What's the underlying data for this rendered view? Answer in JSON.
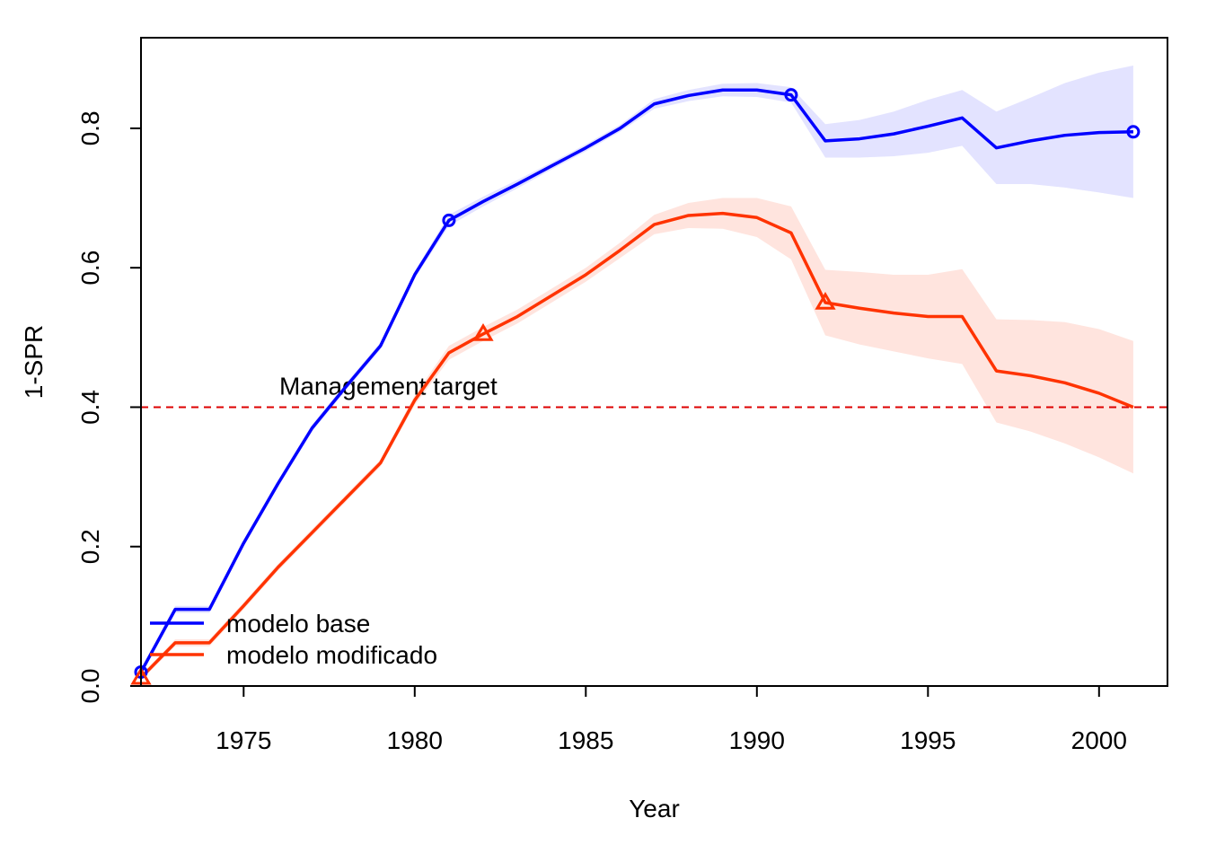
{
  "chart_data": {
    "type": "line",
    "title": "",
    "xlabel": "Year",
    "ylabel": "1-SPR",
    "xlim": [
      1972,
      2002
    ],
    "ylim": [
      0,
      0.93
    ],
    "x_ticks": [
      1975,
      1980,
      1985,
      1990,
      1995,
      2000
    ],
    "x_tick_labels": [
      "1975",
      "1980",
      "1985",
      "1990",
      "1995",
      "2000"
    ],
    "y_ticks": [
      0.0,
      0.2,
      0.4,
      0.6,
      0.8
    ],
    "y_tick_labels": [
      "0.0",
      "0.2",
      "0.4",
      "0.6",
      "0.8"
    ],
    "grid": false,
    "legend_position": "bottom-left",
    "reference_line": {
      "y": 0.4,
      "label": "Management target",
      "color": "#dd0000",
      "style": "dashed"
    },
    "years": [
      1972,
      1973,
      1974,
      1975,
      1976,
      1977,
      1978,
      1979,
      1980,
      1981,
      1982,
      1983,
      1984,
      1985,
      1986,
      1987,
      1988,
      1989,
      1990,
      1991,
      1992,
      1993,
      1994,
      1995,
      1996,
      1997,
      1998,
      1999,
      2000,
      2001
    ],
    "series": [
      {
        "name": "modelo base",
        "color": "#0000ff",
        "band_color": "#e3e3ff",
        "marker": "circle",
        "marker_years": [
          1972,
          1981,
          1991,
          2001
        ],
        "values": [
          0.02,
          0.11,
          0.11,
          0.205,
          0.29,
          0.37,
          0.43,
          0.488,
          0.59,
          0.668,
          0.695,
          0.72,
          0.746,
          0.772,
          0.8,
          0.835,
          0.847,
          0.855,
          0.855,
          0.848,
          0.782,
          0.785,
          0.792,
          0.803,
          0.815,
          0.772,
          0.782,
          0.79,
          0.794,
          0.795
        ],
        "lower": [
          0.015,
          0.105,
          0.105,
          0.2,
          0.285,
          0.365,
          0.425,
          0.483,
          0.585,
          0.66,
          0.688,
          0.714,
          0.741,
          0.767,
          0.795,
          0.828,
          0.839,
          0.846,
          0.845,
          0.837,
          0.758,
          0.758,
          0.76,
          0.765,
          0.775,
          0.72,
          0.72,
          0.715,
          0.708,
          0.7
        ],
        "upper": [
          0.025,
          0.115,
          0.115,
          0.21,
          0.295,
          0.375,
          0.435,
          0.493,
          0.595,
          0.676,
          0.702,
          0.726,
          0.751,
          0.777,
          0.805,
          0.842,
          0.855,
          0.864,
          0.865,
          0.859,
          0.806,
          0.812,
          0.824,
          0.841,
          0.855,
          0.824,
          0.844,
          0.865,
          0.88,
          0.89
        ]
      },
      {
        "name": "modelo modificado",
        "color": "#ff3300",
        "band_color": "#ffe4de",
        "marker": "triangle",
        "marker_years": [
          1972,
          1982,
          1992
        ],
        "values": [
          0.012,
          0.062,
          0.062,
          0.115,
          0.17,
          0.22,
          0.27,
          0.32,
          0.41,
          0.478,
          0.505,
          0.53,
          0.56,
          0.59,
          0.625,
          0.662,
          0.675,
          0.678,
          0.672,
          0.65,
          0.55,
          0.542,
          0.535,
          0.53,
          0.53,
          0.452,
          0.445,
          0.435,
          0.42,
          0.4
        ],
        "lower": [
          0.008,
          0.057,
          0.057,
          0.11,
          0.165,
          0.215,
          0.265,
          0.315,
          0.403,
          0.468,
          0.495,
          0.52,
          0.55,
          0.58,
          0.614,
          0.648,
          0.657,
          0.656,
          0.644,
          0.612,
          0.503,
          0.49,
          0.48,
          0.47,
          0.462,
          0.378,
          0.365,
          0.348,
          0.328,
          0.305
        ],
        "upper": [
          0.016,
          0.067,
          0.067,
          0.12,
          0.175,
          0.225,
          0.275,
          0.325,
          0.417,
          0.488,
          0.515,
          0.54,
          0.57,
          0.6,
          0.636,
          0.676,
          0.693,
          0.7,
          0.7,
          0.688,
          0.597,
          0.594,
          0.59,
          0.59,
          0.598,
          0.526,
          0.525,
          0.522,
          0.512,
          0.495
        ]
      }
    ]
  }
}
